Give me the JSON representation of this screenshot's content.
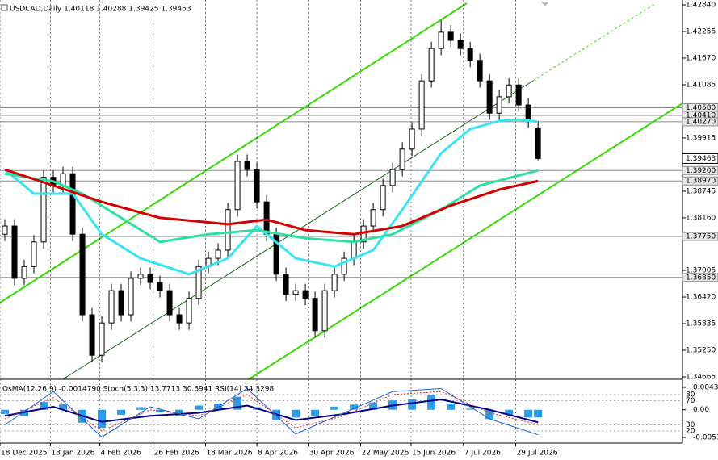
{
  "chart_data": {
    "type": "candlestick",
    "title": "USDCAD,Daily 1.40118 1.40288 1.39425 1.39463",
    "open": [
      1.378,
      1.3798,
      1.3683,
      1.3709,
      1.3763,
      1.3905,
      1.3887,
      1.3913,
      1.378,
      1.3603,
      1.3514,
      1.3585,
      1.3656,
      1.3603,
      1.3683,
      1.3692,
      1.3674,
      1.3656,
      1.3603,
      1.3585,
      1.3639,
      1.3709,
      1.3727,
      1.3745,
      1.3834,
      1.394,
      1.3922,
      1.3851,
      1.378,
      1.3692,
      1.3648,
      1.3656,
      1.3639,
      1.3568,
      1.3656,
      1.3692,
      1.3727,
      1.3763,
      1.3798,
      1.3834,
      1.3887,
      1.3922,
      1.3967,
      1.4011,
      1.4117,
      1.4188,
      1.4224,
      1.4206,
      1.4188,
      1.4162,
      1.4117,
      1.4046,
      1.4082,
      1.4108,
      1.4064,
      1.40118
    ],
    "high": [
      1.3813,
      1.3813,
      1.3724,
      1.3778,
      1.392,
      1.392,
      1.3928,
      1.3928,
      1.3795,
      1.3618,
      1.36,
      1.3671,
      1.3671,
      1.3698,
      1.3707,
      1.3707,
      1.3689,
      1.3671,
      1.3618,
      1.3654,
      1.3724,
      1.3742,
      1.376,
      1.3849,
      1.3955,
      1.3955,
      1.3937,
      1.3866,
      1.3795,
      1.3707,
      1.3671,
      1.3671,
      1.3654,
      1.3671,
      1.3707,
      1.3742,
      1.3778,
      1.3813,
      1.3849,
      1.3902,
      1.3937,
      1.3982,
      1.4026,
      1.4132,
      1.4203,
      1.425,
      1.4239,
      1.4221,
      1.4203,
      1.4177,
      1.4132,
      1.4097,
      1.4123,
      1.4123,
      1.4079,
      1.40288
    ],
    "low": [
      1.3765,
      1.3668,
      1.3668,
      1.3694,
      1.3748,
      1.3872,
      1.3872,
      1.3765,
      1.3588,
      1.3499,
      1.3499,
      1.357,
      1.3588,
      1.3588,
      1.3668,
      1.3659,
      1.3641,
      1.3588,
      1.357,
      1.357,
      1.3624,
      1.3694,
      1.3712,
      1.373,
      1.3819,
      1.3907,
      1.3836,
      1.3765,
      1.3677,
      1.3633,
      1.3633,
      1.3624,
      1.3553,
      1.3553,
      1.3641,
      1.3677,
      1.3712,
      1.3748,
      1.3783,
      1.3819,
      1.3872,
      1.3907,
      1.3952,
      1.3996,
      1.4102,
      1.4173,
      1.4191,
      1.4173,
      1.4147,
      1.4102,
      1.4031,
      1.4031,
      1.4067,
      1.4049,
      1.4014,
      1.39425
    ],
    "close": [
      1.3798,
      1.3683,
      1.3709,
      1.3763,
      1.3905,
      1.3887,
      1.3913,
      1.378,
      1.3603,
      1.3514,
      1.3585,
      1.3656,
      1.3603,
      1.3683,
      1.3692,
      1.3674,
      1.3656,
      1.3603,
      1.3585,
      1.3639,
      1.3709,
      1.3727,
      1.3745,
      1.3834,
      1.394,
      1.3922,
      1.3851,
      1.378,
      1.3692,
      1.3648,
      1.3656,
      1.3639,
      1.3568,
      1.3656,
      1.3692,
      1.3727,
      1.3763,
      1.3798,
      1.3834,
      1.3887,
      1.3922,
      1.3967,
      1.4011,
      1.4117,
      1.4188,
      1.4224,
      1.4206,
      1.4188,
      1.4162,
      1.4117,
      1.4046,
      1.4082,
      1.4108,
      1.4064,
      1.4029,
      1.39463
    ],
    "up_color": "#ffffff",
    "down_color": "#000000",
    "wick_color": "#000000",
    "moving_averages": [
      {
        "color": "#38e4f2",
        "x": [
          0,
          3,
          7,
          10,
          14,
          19,
          23,
          26,
          30,
          34,
          38,
          41,
          45,
          48,
          51,
          53,
          55
        ],
        "values": [
          1.3922,
          1.3869,
          1.3869,
          1.378,
          1.3727,
          1.3692,
          1.3727,
          1.3798,
          1.3727,
          1.3709,
          1.3745,
          1.3834,
          1.3958,
          1.4011,
          1.4029,
          1.4032,
          1.4027
        ]
      },
      {
        "color": "#2ee0a0",
        "x": [
          0,
          5,
          8,
          12,
          16,
          21,
          26,
          31,
          36,
          40,
          45,
          49,
          55
        ],
        "values": [
          1.3913,
          1.3896,
          1.3869,
          1.3816,
          1.3763,
          1.378,
          1.3789,
          1.3771,
          1.3763,
          1.378,
          1.3834,
          1.3887,
          1.392
        ]
      },
      {
        "color": "#d40000",
        "x": [
          0,
          5,
          10,
          16,
          23,
          27,
          31,
          36,
          41,
          46,
          51,
          55
        ],
        "values": [
          1.3922,
          1.3887,
          1.3851,
          1.3816,
          1.3802,
          1.3812,
          1.3789,
          1.378,
          1.3798,
          1.3843,
          1.3878,
          1.3897
        ]
      }
    ],
    "xlim": [
      -0.5,
      69.9
    ],
    "x_labels": [
      {
        "value": -0.5,
        "label": "18 Dec 2025"
      },
      {
        "value": 4.7,
        "label": "13 Jan 2026"
      },
      {
        "value": 9.8,
        "label": "4 Feb 2026"
      },
      {
        "value": 15.3,
        "label": "26 Feb 2026"
      },
      {
        "value": 20.7,
        "label": "18 Mar 2026"
      },
      {
        "value": 26,
        "label": "8 Apr 2026"
      },
      {
        "value": 31.3,
        "label": "30 Apr 2026"
      },
      {
        "value": 36.7,
        "label": "22 May 2026"
      },
      {
        "value": 41.9,
        "label": "15 Jun 2026"
      },
      {
        "value": 47.3,
        "label": "7 Jul 2026"
      },
      {
        "value": 52.7,
        "label": "29 Jul 2026"
      }
    ],
    "ylim": [
      1.34665,
      1.4284
    ],
    "yticks": [
      {
        "value": 1.4284,
        "label": "1.42840"
      },
      1.42255,
      {
        "value": 1.4167,
        "label": "1.41670"
      },
      1.41085,
      1.39915,
      1.38745,
      {
        "value": 1.3816,
        "label": "1.38160"
      },
      1.37005,
      {
        "value": 1.3642,
        "label": "1.36420"
      },
      1.35835,
      {
        "value": 1.3525,
        "label": "1.35250"
      },
      1.34665
    ],
    "levels": [
      {
        "value": 1.4058,
        "label": "1.40580"
      },
      {
        "value": 1.4041,
        "label": "1.40410"
      },
      {
        "value": 1.4027,
        "label": "1.40270"
      },
      {
        "value": 1.392,
        "label": "1.39200"
      },
      {
        "value": 1.3897,
        "label": "1.38970"
      },
      {
        "value": 1.3775,
        "label": "1.37750"
      },
      {
        "value": 1.3685,
        "label": "1.36850"
      }
    ],
    "indicator_pane": {
      "title": "OsMA(12,26,9) -0.0014790 Stoch(5,3,3) 13.7713 30.6941 RSI(14) 34.3298",
      "osma": {
        "color": "#2d9be6",
        "x": [
          0,
          2,
          4,
          6,
          8,
          10,
          12,
          14,
          16,
          18,
          20,
          22,
          24,
          26,
          28,
          30,
          32,
          34,
          36,
          38,
          40,
          42,
          44,
          46,
          48,
          50,
          52,
          54,
          55
        ],
        "values": [
          -0.0008,
          -0.0012,
          0.0015,
          0.001,
          -0.0025,
          -0.0035,
          -0.001,
          0.0005,
          -0.0005,
          -0.0012,
          0.0008,
          0.0012,
          0.0025,
          0.0005,
          -0.002,
          -0.0015,
          -0.0012,
          0.0006,
          0.001,
          0.0014,
          0.0018,
          0.002,
          0.0028,
          0.0012,
          0.0002,
          -0.0018,
          -0.001,
          -0.0015,
          -0.001479
        ]
      },
      "osma_ylim": [
        -0.005334,
        0.004312
      ],
      "osma_ticks": [
        0.004312,
        {
          "value": 0,
          "label": "0.00"
        },
        -0.005334
      ],
      "osc_ylim": [
        0,
        100
      ],
      "osc_ticks": [
        80,
        70,
        30,
        20
      ],
      "lines": [
        {
          "color": "#00008b",
          "width": 2,
          "dash": false,
          "x": [
            0,
            5,
            10,
            15,
            20,
            25,
            30,
            35,
            40,
            45,
            50,
            55
          ],
          "values": [
            45,
            60,
            35,
            45,
            50,
            62,
            38,
            48,
            62,
            72,
            55,
            34.3298
          ]
        },
        {
          "color": "#1e5fd0",
          "width": 1,
          "dash": false,
          "x": [
            0,
            5,
            10,
            15,
            20,
            25,
            30,
            35,
            40,
            45,
            50,
            55
          ],
          "values": [
            30,
            85,
            10,
            60,
            40,
            90,
            15,
            50,
            85,
            90,
            40,
            13.7713
          ]
        },
        {
          "color": "#e02020",
          "width": 1,
          "dash": true,
          "x": [
            0,
            5,
            10,
            15,
            20,
            25,
            30,
            35,
            40,
            45,
            50,
            55
          ],
          "values": [
            40,
            75,
            20,
            55,
            45,
            80,
            25,
            45,
            80,
            85,
            50,
            30.6941
          ]
        }
      ]
    }
  }
}
